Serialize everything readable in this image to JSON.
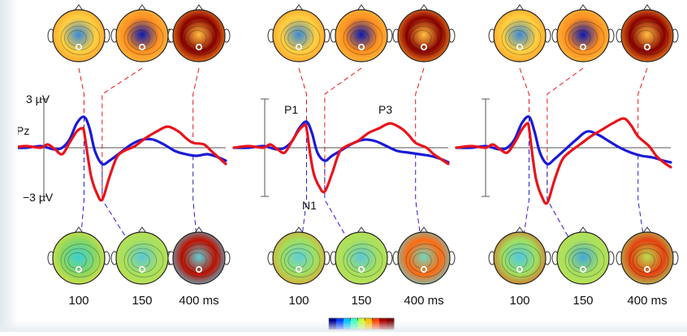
{
  "chart_data": [
    {
      "type": "line",
      "panel": "left",
      "labels": {
        "electrode": "Pz",
        "scale_top": "3 µV",
        "scale_bottom": "−3 µV"
      },
      "x_unit": "ms",
      "series": [
        {
          "color": "#e8141b",
          "x": [
            -100,
            -60,
            -20,
            0,
            20,
            40,
            60,
            80,
            95,
            100,
            110,
            120,
            135,
            150,
            170,
            190,
            210,
            240,
            270,
            300,
            330,
            360,
            380,
            400,
            430,
            450,
            470,
            490
          ],
          "y": [
            0,
            0.1,
            0,
            0.2,
            -0.1,
            -0.4,
            0.3,
            1.0,
            1.2,
            1.0,
            -0.5,
            -1.8,
            -2.8,
            -3.2,
            -1.8,
            -0.6,
            -0.2,
            0.1,
            0.6,
            1.0,
            1.3,
            1.0,
            0.6,
            0.3,
            0.2,
            -0.2,
            -0.6,
            -1.0
          ]
        },
        {
          "color": "#1a1ad6",
          "x": [
            -100,
            -60,
            -20,
            0,
            20,
            40,
            60,
            80,
            100,
            115,
            130,
            150,
            170,
            200,
            230,
            260,
            290,
            320,
            350,
            380,
            410,
            440,
            470,
            490
          ],
          "y": [
            0,
            0,
            0.1,
            0,
            -0.1,
            0,
            0.5,
            1.5,
            1.9,
            1.2,
            -0.2,
            -1.0,
            -0.8,
            -0.3,
            0.2,
            0.5,
            0.5,
            0.2,
            -0.2,
            -0.4,
            -0.5,
            -0.4,
            -0.6,
            -0.8
          ]
        }
      ],
      "topo_maps": {
        "times": [
          "100",
          "150",
          "400 ms"
        ],
        "top_colors": [
          [
            "#ff9a2a",
            "#3a8ad8",
            "#ffd040"
          ],
          [
            "#ffc040",
            "#0a1ab0",
            "#ff9020"
          ],
          [
            "#ff9a20",
            "#ffc040",
            "#8a0000"
          ]
        ],
        "bottom_colors": [
          [
            "#e8e040",
            "#3ad0d0",
            "#8ad860"
          ],
          [
            "#c0e050",
            "#58c8d8",
            "#a8e060"
          ],
          [
            "#50c8e0",
            "#60d0d8",
            "#c01000"
          ]
        ]
      }
    },
    {
      "type": "line",
      "panel": "middle",
      "annotations": [
        "P1",
        "N1",
        "P3"
      ],
      "x_unit": "ms",
      "series": [
        {
          "color": "#e8141b",
          "x": [
            -100,
            -60,
            -20,
            0,
            20,
            40,
            60,
            80,
            95,
            100,
            110,
            120,
            135,
            150,
            170,
            190,
            210,
            240,
            270,
            300,
            330,
            360,
            380,
            400,
            430,
            450,
            470,
            490
          ],
          "y": [
            0,
            0.1,
            0,
            0.2,
            -0.1,
            -0.3,
            0.4,
            1.1,
            1.4,
            1.2,
            -0.4,
            -1.6,
            -2.4,
            -2.7,
            -1.6,
            -0.3,
            0.1,
            0.4,
            0.9,
            1.2,
            1.5,
            1.2,
            0.8,
            0.3,
            0.0,
            -0.4,
            -0.7,
            -1.0
          ]
        },
        {
          "color": "#1a1ad6",
          "x": [
            -100,
            -60,
            -20,
            0,
            20,
            40,
            60,
            80,
            100,
            115,
            130,
            150,
            170,
            200,
            230,
            260,
            290,
            320,
            350,
            380,
            410,
            440,
            470,
            490
          ],
          "y": [
            0,
            0,
            0.1,
            0,
            -0.1,
            0,
            0.4,
            1.2,
            1.6,
            0.9,
            -0.3,
            -0.8,
            -0.5,
            -0.1,
            0.3,
            0.5,
            0.4,
            0.1,
            -0.2,
            -0.3,
            -0.4,
            -0.5,
            -0.7,
            -0.9
          ]
        }
      ],
      "topo_maps": {
        "times": [
          "100",
          "150",
          "400 ms"
        ],
        "top_colors": [
          [
            "#ff9a2a",
            "#3a8ad8",
            "#ffd040"
          ],
          [
            "#ffc040",
            "#0a1ab0",
            "#ff9020"
          ],
          [
            "#ff9a20",
            "#ffc040",
            "#8a0000"
          ]
        ],
        "bottom_colors": [
          [
            "#e8a030",
            "#60d0d8",
            "#a0e060"
          ],
          [
            "#c0e050",
            "#58c8d8",
            "#a8e060"
          ],
          [
            "#60d0d8",
            "#70d8c0",
            "#ff6a10"
          ]
        ]
      }
    },
    {
      "type": "line",
      "panel": "right",
      "x_unit": "ms",
      "series": [
        {
          "color": "#e8141b",
          "x": [
            -100,
            -60,
            -20,
            0,
            20,
            40,
            60,
            80,
            95,
            100,
            110,
            120,
            135,
            150,
            170,
            190,
            210,
            240,
            270,
            300,
            330,
            360,
            380,
            400,
            430,
            450,
            470,
            490
          ],
          "y": [
            0,
            0.1,
            0,
            0.2,
            -0.1,
            -0.3,
            0.3,
            1.1,
            1.5,
            1.2,
            -0.6,
            -2.0,
            -3.0,
            -3.4,
            -2.0,
            -0.8,
            -0.3,
            0.2,
            0.7,
            1.1,
            1.5,
            1.8,
            1.4,
            0.7,
            0.1,
            -0.5,
            -0.9,
            -1.2
          ]
        },
        {
          "color": "#1a1ad6",
          "x": [
            -100,
            -60,
            -20,
            0,
            20,
            40,
            60,
            80,
            100,
            115,
            130,
            150,
            170,
            200,
            230,
            260,
            290,
            320,
            350,
            380,
            410,
            440,
            470,
            490
          ],
          "y": [
            0,
            0,
            0.1,
            0,
            -0.1,
            0,
            0.5,
            1.5,
            1.9,
            1.0,
            -0.3,
            -1.0,
            -0.7,
            -0.1,
            0.5,
            1.0,
            0.8,
            0.4,
            0.0,
            -0.3,
            -0.5,
            -0.6,
            -0.8,
            -0.9
          ]
        }
      ],
      "topo_maps": {
        "times": [
          "100",
          "150",
          "400 ms"
        ],
        "top_colors": [
          [
            "#ff9a2a",
            "#3a8ad8",
            "#ffd040"
          ],
          [
            "#ffc040",
            "#0a1ab0",
            "#ff9020"
          ],
          [
            "#ff9a20",
            "#ffc040",
            "#8a0000"
          ]
        ],
        "bottom_colors": [
          [
            "#e06020",
            "#50c8e0",
            "#a0e060"
          ],
          [
            "#c0e050",
            "#40a8d8",
            "#a8e060"
          ],
          [
            "#a0d860",
            "#b8e050",
            "#e84010"
          ]
        ]
      }
    }
  ],
  "colorbar": [
    "#00008f",
    "#0040ff",
    "#00c0ff",
    "#40ffc0",
    "#c0ff40",
    "#ffc000",
    "#ff4000",
    "#b00000",
    "#800000"
  ]
}
